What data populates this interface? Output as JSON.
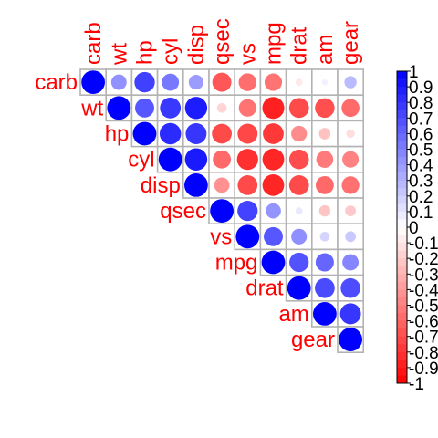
{
  "chart_data": {
    "type": "heatmap",
    "variables": [
      "carb",
      "wt",
      "hp",
      "cyl",
      "disp",
      "qsec",
      "vs",
      "mpg",
      "drat",
      "am",
      "gear"
    ],
    "matrix": [
      [
        1.0,
        0.43,
        0.75,
        0.53,
        0.39,
        -0.66,
        -0.57,
        -0.55,
        -0.09,
        0.06,
        0.27
      ],
      [
        0.43,
        1.0,
        0.66,
        0.78,
        0.89,
        -0.17,
        -0.55,
        -0.87,
        -0.71,
        -0.69,
        -0.58
      ],
      [
        0.75,
        0.66,
        1.0,
        0.83,
        0.79,
        -0.71,
        -0.72,
        -0.78,
        -0.45,
        -0.24,
        -0.13
      ],
      [
        0.53,
        0.78,
        0.83,
        1.0,
        0.9,
        -0.59,
        -0.81,
        -0.85,
        -0.7,
        -0.52,
        -0.49
      ],
      [
        0.39,
        0.89,
        0.79,
        0.9,
        1.0,
        -0.43,
        -0.71,
        -0.85,
        -0.71,
        -0.59,
        -0.56
      ],
      [
        -0.66,
        -0.17,
        -0.71,
        -0.59,
        -0.43,
        1.0,
        0.74,
        0.42,
        0.09,
        -0.23,
        -0.21
      ],
      [
        -0.57,
        -0.55,
        -0.72,
        -0.81,
        -0.71,
        0.74,
        1.0,
        0.66,
        0.44,
        0.17,
        0.21
      ],
      [
        -0.55,
        -0.87,
        -0.78,
        -0.85,
        -0.85,
        0.42,
        0.66,
        1.0,
        0.68,
        0.6,
        0.48
      ],
      [
        -0.09,
        -0.71,
        -0.45,
        -0.7,
        -0.71,
        0.09,
        0.44,
        0.68,
        1.0,
        0.71,
        0.7
      ],
      [
        0.06,
        -0.69,
        -0.24,
        -0.52,
        -0.59,
        -0.23,
        0.17,
        0.6,
        0.71,
        1.0,
        0.79
      ],
      [
        0.27,
        -0.58,
        -0.13,
        -0.49,
        -0.56,
        -0.21,
        0.21,
        0.48,
        0.7,
        0.79,
        1.0
      ]
    ],
    "display": "upper-triangle",
    "colorbar": {
      "range": [
        -1,
        1
      ],
      "tick_labels": [
        "1",
        "0.9",
        "0.8",
        "0.7",
        "0.6",
        "0.5",
        "0.4",
        "0.3",
        "0.2",
        "0.1",
        "0",
        "-0.1",
        "-0.2",
        "-0.3",
        "-0.4",
        "-0.5",
        "-0.6",
        "-0.7",
        "-0.8",
        "-0.9",
        "-1"
      ],
      "colors": {
        "positive": "#0000ff",
        "zero": "#ffffff",
        "negative": "#ff0000"
      }
    },
    "label_color": "#ff0000",
    "grid_color": "#b3b3b3"
  }
}
